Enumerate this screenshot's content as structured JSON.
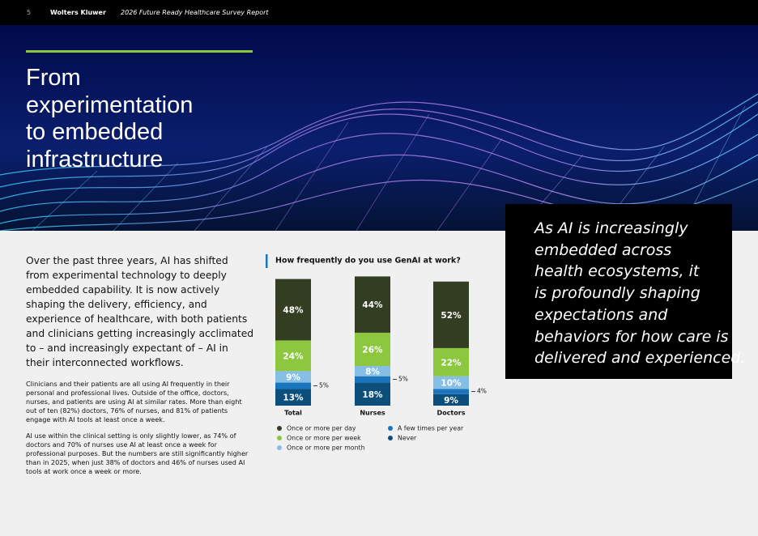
{
  "header": {
    "page_number": "5",
    "brand": "Wolters Kluwer",
    "report": "2026 Future Ready Healthcare Survey Report"
  },
  "hero": {
    "title_lines": [
      "From",
      "experimentation",
      "to embedded",
      "infrastructure"
    ]
  },
  "intro": "Over the past three years, AI has shifted from experimental technology to deeply embedded capability. It is now actively shaping the delivery, efficiency, and experience of healthcare, with both patients and clinicians getting increasingly acclimated to – and increasingly expectant of – AI in their interconnected workflows.",
  "body": [
    "Clinicians and their patients are all using AI frequently in their personal and professional lives. Outside of the office, doctors, nurses, and patients are using AI at similar rates. More than eight out of ten (82%) doctors, 76% of nurses, and 81% of patients engage with AI tools at least once a week.",
    "AI use within the clinical setting is only slightly lower, as 74% of doctors and 70% of nurses use AI at least once a week for professional purposes. But the numbers are still significantly higher than in 2025, when just 38% of doctors and 46% of nurses used AI tools at work once a week or more."
  ],
  "quote_lines": [
    "As AI is increasingly",
    "embedded across",
    "health ecosystems, it",
    "is profoundly shaping",
    "expectations and",
    "behaviors for how care is",
    "delivered and experienced."
  ],
  "chart_data": {
    "type": "stacked_bar",
    "title": "How frequently do you use GenAI at work?",
    "categories": [
      "Total",
      "Nurses",
      "Doctors"
    ],
    "ylim": [
      0,
      100
    ],
    "series": [
      {
        "name": "Once or more per day",
        "color": "#333d22",
        "values": [
          48,
          44,
          52
        ],
        "value_labels": [
          "48%",
          "44%",
          "52%"
        ]
      },
      {
        "name": "Once or more per week",
        "color": "#8dc63f",
        "values": [
          24,
          26,
          22
        ],
        "value_labels": [
          "24%",
          "26%",
          "22%"
        ]
      },
      {
        "name": "Once or more per month",
        "color": "#85bfe5",
        "values": [
          9,
          8,
          10
        ],
        "value_labels": [
          "9%",
          "8%",
          "10%"
        ]
      },
      {
        "name": "A few times per year",
        "color": "#1b75bc",
        "values": [
          5,
          5,
          4
        ],
        "value_labels": [
          "5%",
          "5%",
          "4%"
        ]
      },
      {
        "name": "Never",
        "color": "#0d4f7c",
        "values": [
          13,
          18,
          9
        ],
        "value_labels": [
          "13%",
          "18%",
          "9%"
        ]
      }
    ]
  }
}
